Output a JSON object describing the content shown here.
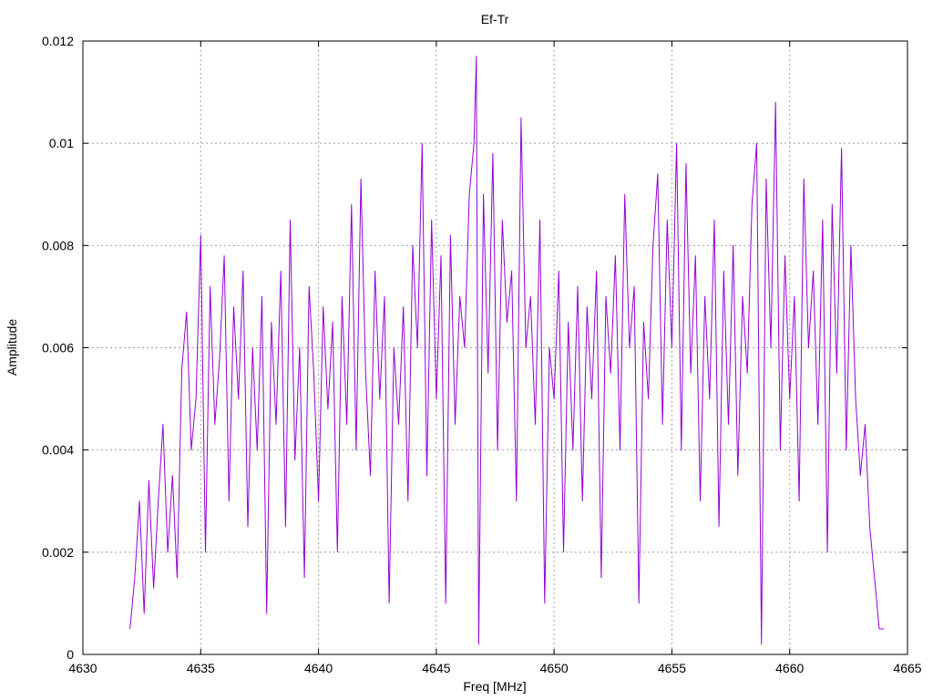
{
  "chart_data": {
    "type": "line",
    "title": "Ef-Tr",
    "xlabel": "Freq [MHz]",
    "ylabel": "Amplitude",
    "xlim": [
      4630,
      4665
    ],
    "ylim": [
      0,
      0.012
    ],
    "x_ticks": [
      "4630",
      "4635",
      "4640",
      "4645",
      "4650",
      "4655",
      "4660",
      "4665"
    ],
    "y_ticks": [
      "0",
      "0.002",
      "0.004",
      "0.006",
      "0.008",
      "0.01",
      "0.012"
    ],
    "x_tick_values": [
      4630,
      4635,
      4640,
      4645,
      4650,
      4655,
      4660,
      4665
    ],
    "y_tick_values": [
      0,
      0.002,
      0.004,
      0.006,
      0.008,
      0.01,
      0.012
    ],
    "grid": true,
    "legend": "none",
    "series": [
      {
        "color": "#9400d3",
        "points": [
          [
            4632.0,
            0.0005
          ],
          [
            4632.2,
            0.0015
          ],
          [
            4632.4,
            0.003
          ],
          [
            4632.6,
            0.0008
          ],
          [
            4632.8,
            0.0034
          ],
          [
            4633.0,
            0.0013
          ],
          [
            4633.2,
            0.003
          ],
          [
            4633.4,
            0.0045
          ],
          [
            4633.6,
            0.002
          ],
          [
            4633.8,
            0.0035
          ],
          [
            4634.0,
            0.0015
          ],
          [
            4634.2,
            0.0056
          ],
          [
            4634.4,
            0.0067
          ],
          [
            4634.6,
            0.004
          ],
          [
            4634.8,
            0.005
          ],
          [
            4635.0,
            0.0082
          ],
          [
            4635.2,
            0.002
          ],
          [
            4635.4,
            0.0072
          ],
          [
            4635.6,
            0.0045
          ],
          [
            4635.8,
            0.0058
          ],
          [
            4636.0,
            0.0078
          ],
          [
            4636.2,
            0.003
          ],
          [
            4636.4,
            0.0068
          ],
          [
            4636.6,
            0.005
          ],
          [
            4636.8,
            0.0075
          ],
          [
            4637.0,
            0.0025
          ],
          [
            4637.2,
            0.006
          ],
          [
            4637.4,
            0.004
          ],
          [
            4637.6,
            0.007
          ],
          [
            4637.8,
            0.0008
          ],
          [
            4638.0,
            0.0065
          ],
          [
            4638.2,
            0.0045
          ],
          [
            4638.4,
            0.0075
          ],
          [
            4638.6,
            0.0025
          ],
          [
            4638.8,
            0.0085
          ],
          [
            4639.0,
            0.0038
          ],
          [
            4639.2,
            0.006
          ],
          [
            4639.4,
            0.0015
          ],
          [
            4639.6,
            0.0072
          ],
          [
            4639.8,
            0.0055
          ],
          [
            4640.0,
            0.003
          ],
          [
            4640.2,
            0.0068
          ],
          [
            4640.4,
            0.0048
          ],
          [
            4640.6,
            0.0065
          ],
          [
            4640.8,
            0.002
          ],
          [
            4641.0,
            0.007
          ],
          [
            4641.2,
            0.0045
          ],
          [
            4641.4,
            0.0088
          ],
          [
            4641.6,
            0.004
          ],
          [
            4641.8,
            0.0093
          ],
          [
            4642.0,
            0.0055
          ],
          [
            4642.2,
            0.0035
          ],
          [
            4642.4,
            0.0075
          ],
          [
            4642.6,
            0.005
          ],
          [
            4642.8,
            0.007
          ],
          [
            4643.0,
            0.001
          ],
          [
            4643.2,
            0.006
          ],
          [
            4643.4,
            0.0045
          ],
          [
            4643.6,
            0.0068
          ],
          [
            4643.8,
            0.003
          ],
          [
            4644.0,
            0.008
          ],
          [
            4644.2,
            0.006
          ],
          [
            4644.4,
            0.01
          ],
          [
            4644.6,
            0.0035
          ],
          [
            4644.8,
            0.0085
          ],
          [
            4645.0,
            0.005
          ],
          [
            4645.2,
            0.0078
          ],
          [
            4645.4,
            0.001
          ],
          [
            4645.6,
            0.0082
          ],
          [
            4645.8,
            0.0045
          ],
          [
            4646.0,
            0.007
          ],
          [
            4646.2,
            0.006
          ],
          [
            4646.4,
            0.009
          ],
          [
            4646.6,
            0.01
          ],
          [
            4646.7,
            0.0117
          ],
          [
            4646.8,
            0.0002
          ],
          [
            4647.0,
            0.009
          ],
          [
            4647.2,
            0.0055
          ],
          [
            4647.4,
            0.0098
          ],
          [
            4647.6,
            0.004
          ],
          [
            4647.8,
            0.0085
          ],
          [
            4648.0,
            0.0065
          ],
          [
            4648.2,
            0.0075
          ],
          [
            4648.4,
            0.003
          ],
          [
            4648.6,
            0.0105
          ],
          [
            4648.8,
            0.006
          ],
          [
            4649.0,
            0.007
          ],
          [
            4649.2,
            0.0045
          ],
          [
            4649.4,
            0.0085
          ],
          [
            4649.6,
            0.001
          ],
          [
            4649.8,
            0.006
          ],
          [
            4650.0,
            0.005
          ],
          [
            4650.2,
            0.0075
          ],
          [
            4650.4,
            0.002
          ],
          [
            4650.6,
            0.0065
          ],
          [
            4650.8,
            0.004
          ],
          [
            4651.0,
            0.0072
          ],
          [
            4651.2,
            0.003
          ],
          [
            4651.4,
            0.0068
          ],
          [
            4651.6,
            0.005
          ],
          [
            4651.8,
            0.0075
          ],
          [
            4652.0,
            0.0015
          ],
          [
            4652.2,
            0.007
          ],
          [
            4652.4,
            0.0055
          ],
          [
            4652.6,
            0.0078
          ],
          [
            4652.8,
            0.004
          ],
          [
            4653.0,
            0.009
          ],
          [
            4653.2,
            0.006
          ],
          [
            4653.4,
            0.0072
          ],
          [
            4653.6,
            0.001
          ],
          [
            4653.8,
            0.0065
          ],
          [
            4654.0,
            0.005
          ],
          [
            4654.2,
            0.008
          ],
          [
            4654.4,
            0.0094
          ],
          [
            4654.6,
            0.0045
          ],
          [
            4654.8,
            0.0085
          ],
          [
            4655.0,
            0.006
          ],
          [
            4655.2,
            0.01
          ],
          [
            4655.4,
            0.004
          ],
          [
            4655.6,
            0.0096
          ],
          [
            4655.8,
            0.0055
          ],
          [
            4656.0,
            0.0078
          ],
          [
            4656.2,
            0.003
          ],
          [
            4656.4,
            0.007
          ],
          [
            4656.6,
            0.005
          ],
          [
            4656.8,
            0.0085
          ],
          [
            4657.0,
            0.0025
          ],
          [
            4657.2,
            0.0075
          ],
          [
            4657.4,
            0.0045
          ],
          [
            4657.6,
            0.008
          ],
          [
            4657.8,
            0.0035
          ],
          [
            4658.0,
            0.007
          ],
          [
            4658.2,
            0.0055
          ],
          [
            4658.4,
            0.0088
          ],
          [
            4658.6,
            0.01
          ],
          [
            4658.8,
            0.0002
          ],
          [
            4659.0,
            0.0093
          ],
          [
            4659.2,
            0.006
          ],
          [
            4659.4,
            0.0108
          ],
          [
            4659.6,
            0.004
          ],
          [
            4659.8,
            0.0078
          ],
          [
            4660.0,
            0.005
          ],
          [
            4660.2,
            0.007
          ],
          [
            4660.4,
            0.003
          ],
          [
            4660.6,
            0.0093
          ],
          [
            4660.8,
            0.006
          ],
          [
            4661.0,
            0.0075
          ],
          [
            4661.2,
            0.0045
          ],
          [
            4661.4,
            0.0085
          ],
          [
            4661.6,
            0.002
          ],
          [
            4661.8,
            0.0088
          ],
          [
            4662.0,
            0.0055
          ],
          [
            4662.2,
            0.0099
          ],
          [
            4662.4,
            0.004
          ],
          [
            4662.6,
            0.008
          ],
          [
            4662.8,
            0.005
          ],
          [
            4663.0,
            0.0035
          ],
          [
            4663.2,
            0.0045
          ],
          [
            4663.4,
            0.0025
          ],
          [
            4663.6,
            0.0015
          ],
          [
            4663.8,
            0.0005
          ],
          [
            4664.0,
            0.0005
          ]
        ]
      }
    ]
  }
}
